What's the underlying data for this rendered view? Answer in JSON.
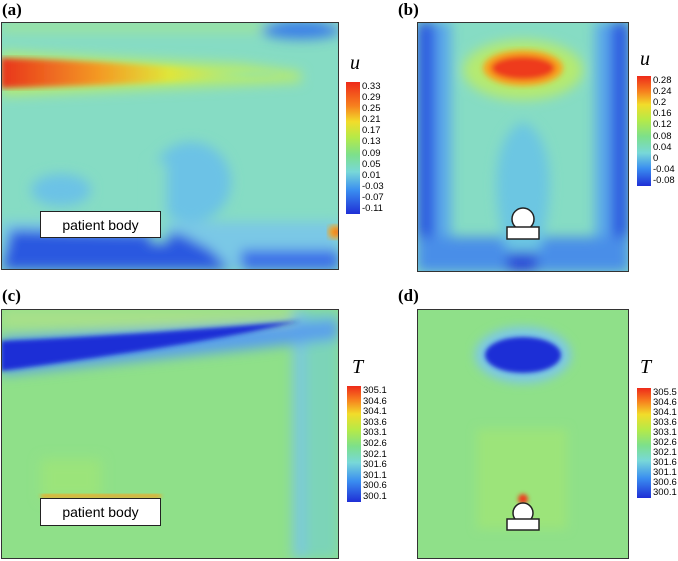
{
  "panels": {
    "a": {
      "label": "(a)",
      "colorbar_title": "u",
      "ticks": [
        "0.33",
        "0.29",
        "0.25",
        "0.21",
        "0.17",
        "0.13",
        "0.09",
        "0.05",
        "0.01",
        "-0.03",
        "-0.07",
        "-0.11"
      ],
      "body_label": "patient body"
    },
    "b": {
      "label": "(b)",
      "colorbar_title": "u",
      "ticks": [
        "0.28",
        "0.24",
        "0.2",
        "0.16",
        "0.12",
        "0.08",
        "0.04",
        "0",
        "-0.04",
        "-0.08"
      ]
    },
    "c": {
      "label": "(c)",
      "colorbar_title": "T",
      "ticks": [
        "305.1",
        "304.6",
        "304.1",
        "303.6",
        "303.1",
        "302.6",
        "302.1",
        "301.6",
        "301.1",
        "300.6",
        "300.1"
      ],
      "body_label": "patient body"
    },
    "d": {
      "label": "(d)",
      "colorbar_title": "T",
      "ticks": [
        "305.5",
        "304.6",
        "304.1",
        "303.6",
        "303.1",
        "302.6",
        "302.1",
        "301.6",
        "301.1",
        "300.6",
        "300.1"
      ]
    }
  },
  "colors": {
    "jet": [
      "#1f2fd6",
      "#2a7ff0",
      "#35c8e8",
      "#7fe0c8",
      "#9fe88a",
      "#c8ee4a",
      "#f2e22a",
      "#f7a51e",
      "#ee3b1a"
    ],
    "background_field": "#86dcc4",
    "temp_background": "#8fe089"
  }
}
